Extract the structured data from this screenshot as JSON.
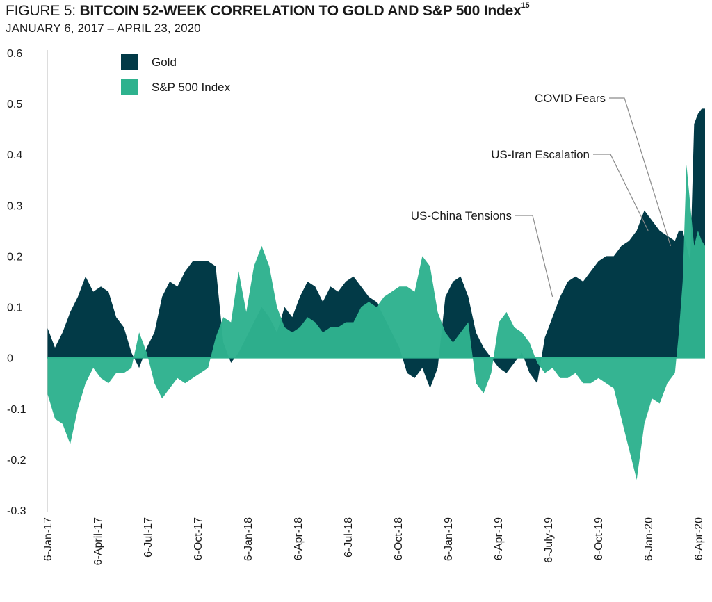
{
  "title": {
    "lead": "FIGURE 5: ",
    "main": "BITCOIN 52-WEEK CORRELATION TO GOLD AND S&P 500 Index",
    "footnote": "15"
  },
  "subtitle": "JANUARY 6, 2017 – APRIL 23, 2020",
  "colors": {
    "gold": "#023a47",
    "sp500": "#2eb28e",
    "axis": "#bbbbbb"
  },
  "chart_data": {
    "type": "area",
    "ylim": [
      -0.3,
      0.6
    ],
    "yticks": [
      "0.6",
      "0.5",
      "0.4",
      "0.3",
      "0.2",
      "0.1",
      "0",
      "-0.1",
      "-0.2",
      "-0.3"
    ],
    "ytick_values": [
      0.6,
      0.5,
      0.4,
      0.3,
      0.2,
      0.1,
      0,
      -0.1,
      -0.2,
      -0.3
    ],
    "xticks": [
      "6-Jan-17",
      "6-April-17",
      "6-Jul-17",
      "6-Oct-17",
      "6-Jan-18",
      "6-Apr-18",
      "6-Jul-18",
      "6-Oct-18",
      "6-Jan-19",
      "6-Apr-19",
      "6-July-19",
      "6-Oct-19",
      "6-Jan-20",
      "6-Apr-20"
    ],
    "legend": {
      "position": "top-left",
      "entries": [
        "Gold",
        "S&P 500 Index"
      ]
    },
    "x": [
      "2017-01-06",
      "2017-01-20",
      "2017-02-03",
      "2017-02-17",
      "2017-03-03",
      "2017-03-17",
      "2017-03-31",
      "2017-04-14",
      "2017-04-28",
      "2017-05-12",
      "2017-05-26",
      "2017-06-09",
      "2017-06-23",
      "2017-07-07",
      "2017-07-21",
      "2017-08-04",
      "2017-08-18",
      "2017-09-01",
      "2017-09-15",
      "2017-09-29",
      "2017-10-13",
      "2017-10-27",
      "2017-11-10",
      "2017-11-24",
      "2017-12-08",
      "2017-12-22",
      "2018-01-05",
      "2018-01-19",
      "2018-02-02",
      "2018-02-16",
      "2018-03-02",
      "2018-03-16",
      "2018-03-30",
      "2018-04-13",
      "2018-04-27",
      "2018-05-11",
      "2018-05-25",
      "2018-06-08",
      "2018-06-22",
      "2018-07-06",
      "2018-07-20",
      "2018-08-03",
      "2018-08-17",
      "2018-08-31",
      "2018-09-14",
      "2018-09-28",
      "2018-10-12",
      "2018-10-26",
      "2018-11-09",
      "2018-11-23",
      "2018-12-07",
      "2018-12-21",
      "2019-01-04",
      "2019-01-18",
      "2019-02-01",
      "2019-02-15",
      "2019-03-01",
      "2019-03-15",
      "2019-03-29",
      "2019-04-12",
      "2019-04-26",
      "2019-05-10",
      "2019-05-24",
      "2019-06-07",
      "2019-06-21",
      "2019-07-05",
      "2019-07-19",
      "2019-08-02",
      "2019-08-16",
      "2019-08-30",
      "2019-09-13",
      "2019-09-27",
      "2019-10-11",
      "2019-10-25",
      "2019-11-08",
      "2019-11-22",
      "2019-12-06",
      "2019-12-20",
      "2020-01-03",
      "2020-01-17",
      "2020-01-31",
      "2020-02-14",
      "2020-02-28",
      "2020-03-06",
      "2020-03-13",
      "2020-03-20",
      "2020-03-27",
      "2020-04-03",
      "2020-04-10",
      "2020-04-17",
      "2020-04-23"
    ],
    "series": [
      {
        "name": "Gold",
        "values": [
          0.06,
          0.02,
          0.05,
          0.09,
          0.12,
          0.16,
          0.13,
          0.14,
          0.13,
          0.08,
          0.06,
          0.01,
          -0.02,
          0.02,
          0.05,
          0.12,
          0.15,
          0.14,
          0.17,
          0.19,
          0.19,
          0.19,
          0.18,
          0.03,
          -0.01,
          0.01,
          0.04,
          0.07,
          0.1,
          0.08,
          0.05,
          0.1,
          0.08,
          0.12,
          0.15,
          0.14,
          0.11,
          0.14,
          0.13,
          0.15,
          0.16,
          0.14,
          0.12,
          0.11,
          0.08,
          0.05,
          0.02,
          -0.03,
          -0.04,
          -0.02,
          -0.06,
          -0.02,
          0.12,
          0.15,
          0.16,
          0.12,
          0.05,
          0.02,
          0.0,
          -0.02,
          -0.03,
          -0.01,
          0.01,
          -0.03,
          -0.05,
          0.04,
          0.08,
          0.12,
          0.15,
          0.16,
          0.15,
          0.17,
          0.19,
          0.2,
          0.2,
          0.22,
          0.23,
          0.25,
          0.29,
          0.27,
          0.25,
          0.24,
          0.23,
          0.25,
          0.25,
          0.22,
          0.19,
          0.46,
          0.48,
          0.49,
          0.49
        ]
      },
      {
        "name": "S&P 500 Index",
        "values": [
          -0.07,
          -0.12,
          -0.13,
          -0.17,
          -0.1,
          -0.05,
          -0.02,
          -0.04,
          -0.05,
          -0.03,
          -0.03,
          -0.02,
          0.05,
          0.01,
          -0.05,
          -0.08,
          -0.06,
          -0.04,
          -0.05,
          -0.04,
          -0.03,
          -0.02,
          0.04,
          0.08,
          0.07,
          0.17,
          0.09,
          0.18,
          0.22,
          0.18,
          0.1,
          0.06,
          0.05,
          0.06,
          0.08,
          0.07,
          0.05,
          0.06,
          0.06,
          0.07,
          0.07,
          0.1,
          0.11,
          0.1,
          0.12,
          0.13,
          0.14,
          0.14,
          0.13,
          0.2,
          0.18,
          0.09,
          0.05,
          0.03,
          0.05,
          0.07,
          -0.05,
          -0.07,
          -0.03,
          0.07,
          0.09,
          0.06,
          0.05,
          0.03,
          -0.01,
          -0.03,
          -0.02,
          -0.04,
          -0.04,
          -0.03,
          -0.05,
          -0.05,
          -0.04,
          -0.05,
          -0.06,
          -0.12,
          -0.18,
          -0.24,
          -0.13,
          -0.08,
          -0.09,
          -0.05,
          -0.03,
          0.05,
          0.15,
          0.38,
          0.3,
          0.22,
          0.25,
          0.23,
          0.22
        ]
      }
    ],
    "annotations": [
      {
        "text": "US-China Tensions",
        "date": "2019-07-19",
        "value": 0.12
      },
      {
        "text": "US-Iran Escalation",
        "date": "2020-01-10",
        "value": 0.25
      },
      {
        "text": "COVID Fears",
        "date": "2020-02-20",
        "value": 0.22
      }
    ]
  }
}
